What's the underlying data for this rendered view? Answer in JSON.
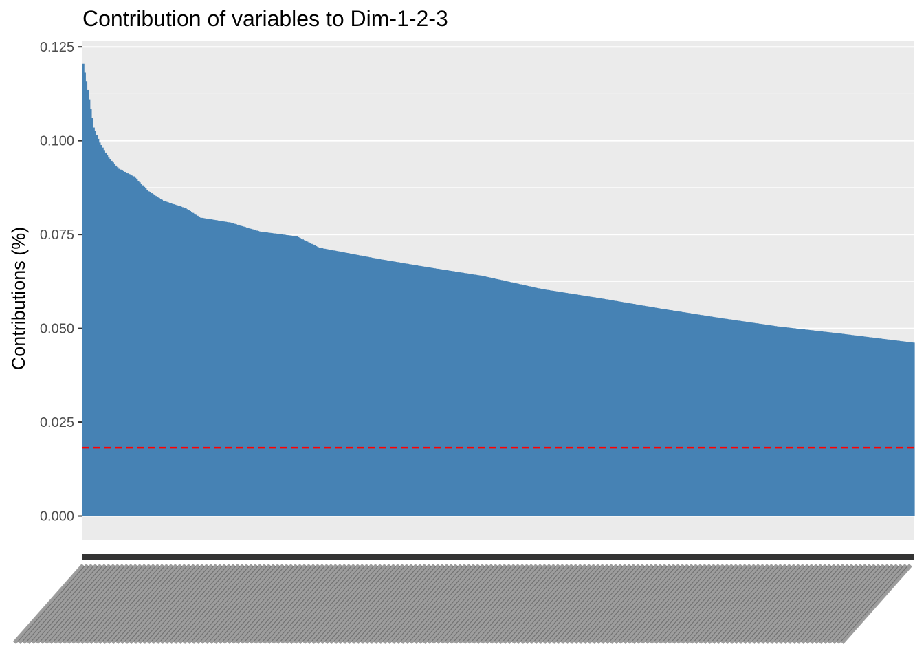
{
  "colors": {
    "bar": "#4682b4",
    "panel": "#ebebeb",
    "grid": "#ffffff",
    "reference_line": "#ff0000",
    "tick_text": "#4d4d4d",
    "axis_tick": "#333333"
  },
  "chart_data": {
    "type": "bar",
    "title": "Contribution of variables to Dim-1-2-3",
    "xlabel": "",
    "ylabel": "Contributions (%)",
    "ylim": [
      -0.0065,
      0.1265
    ],
    "yticks": [
      "0.000",
      "0.025",
      "0.050",
      "0.075",
      "0.100",
      "0.125"
    ],
    "grid": true,
    "legend": "none",
    "sorted": "descending",
    "reference_line": {
      "value": 0.0182,
      "style": "dashed"
    },
    "n_bars": 561,
    "value_profile": [
      {
        "rank": 1,
        "value": 0.1205
      },
      {
        "rank": 4,
        "value": 0.1135
      },
      {
        "rank": 8,
        "value": 0.1035
      },
      {
        "rank": 12,
        "value": 0.0995
      },
      {
        "rank": 18,
        "value": 0.0955
      },
      {
        "rank": 25,
        "value": 0.0925
      },
      {
        "rank": 35,
        "value": 0.0905
      },
      {
        "rank": 45,
        "value": 0.0865
      },
      {
        "rank": 55,
        "value": 0.084
      },
      {
        "rank": 70,
        "value": 0.082
      },
      {
        "rank": 80,
        "value": 0.0795
      },
      {
        "rank": 100,
        "value": 0.0782
      },
      {
        "rank": 120,
        "value": 0.0758
      },
      {
        "rank": 145,
        "value": 0.0745
      },
      {
        "rank": 160,
        "value": 0.0715
      },
      {
        "rank": 200,
        "value": 0.0685
      },
      {
        "rank": 230,
        "value": 0.0665
      },
      {
        "rank": 270,
        "value": 0.064
      },
      {
        "rank": 310,
        "value": 0.0605
      },
      {
        "rank": 350,
        "value": 0.058
      },
      {
        "rank": 390,
        "value": 0.0553
      },
      {
        "rank": 430,
        "value": 0.0528
      },
      {
        "rank": 470,
        "value": 0.0505
      },
      {
        "rank": 510,
        "value": 0.0487
      },
      {
        "rank": 561,
        "value": 0.0462
      }
    ],
    "x_tick_labels_legible": false
  }
}
